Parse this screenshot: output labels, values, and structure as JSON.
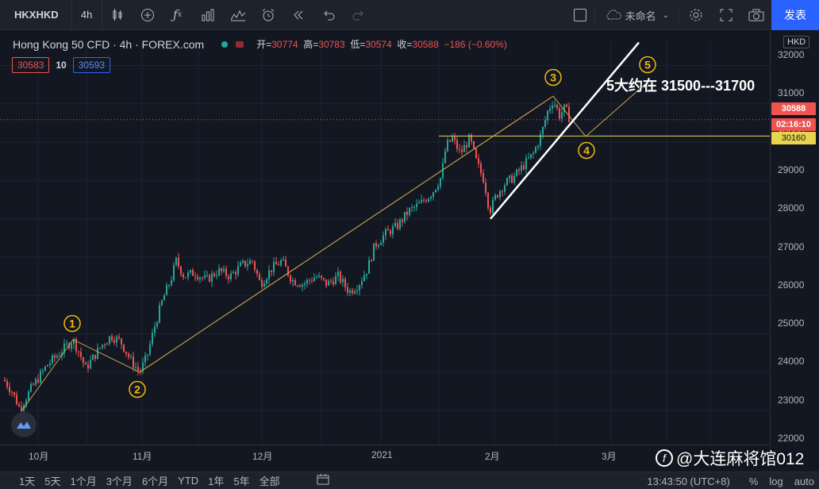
{
  "toolbar": {
    "symbol": "HKXHKD",
    "interval": "4h",
    "icons": [
      "candles-icon",
      "add-indicator-icon",
      "fx-icon",
      "bar-chart-icon",
      "templates-icon",
      "alarm-icon",
      "replay-icon",
      "undo-icon",
      "redo-icon"
    ],
    "layout_name": "未命名",
    "publish_label": "发表"
  },
  "legend": {
    "title": "Hong Kong 50 CFD · 4h · FOREX.com",
    "open_label": "开=",
    "open": "30774",
    "high_label": "高=",
    "high": "30783",
    "low_label": "低=",
    "low": "30574",
    "close_label": "收=",
    "close": "30588",
    "change": "−186 (−0.60%)",
    "bid": "30583",
    "spread": "10",
    "ask": "30593"
  },
  "price_axis": {
    "currency": "HKD",
    "ticks": [
      "32000",
      "31000",
      "30000",
      "29000",
      "28000",
      "27000",
      "26000",
      "25000",
      "24000",
      "23000",
      "22000"
    ],
    "last_price": "30588",
    "countdown": "02:16:10",
    "level": "30160"
  },
  "time_axis": {
    "ticks": [
      "10月",
      "11月",
      "12月",
      "2021",
      "2月",
      "3月"
    ]
  },
  "annotation": "5大约在 31500---31700",
  "waves": [
    "1",
    "2",
    "3",
    "4",
    "5"
  ],
  "bottom_bar": {
    "ranges": [
      "1天",
      "5天",
      "1个月",
      "3个月",
      "6个月",
      "YTD",
      "1年",
      "5年",
      "全部"
    ],
    "clock": "13:43:50 (UTC+8)",
    "percent": "%",
    "log": "log",
    "auto": "auto"
  },
  "watermark": "@大连麻将馆012",
  "colors": {
    "up": "#26a69a",
    "down": "#ef5350",
    "wave_line": "#c9a14a",
    "wave_label": "#f0b90b",
    "level_line": "#e8d44d",
    "trend_line": "#ffffff"
  },
  "chart_data": {
    "type": "candlestick",
    "ylim": [
      22000,
      32000
    ],
    "level": 30160,
    "last": 30588,
    "wave_points": [
      {
        "label": "1",
        "date": "2020-10-13",
        "price": 24850
      },
      {
        "label": "2",
        "date": "2020-11-02",
        "price": 24000
      },
      {
        "label": "3",
        "date": "2021-02-18",
        "price": 31200
      },
      {
        "label": "4",
        "date": "2021-03-01",
        "price": 30150
      },
      {
        "label": "5",
        "date": "2021-03-10",
        "price": 31500
      }
    ]
  }
}
